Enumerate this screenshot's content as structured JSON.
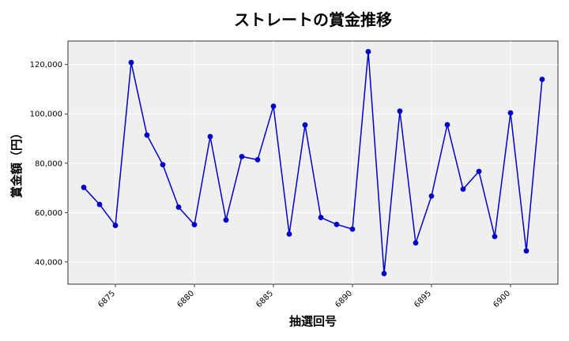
{
  "chart_data": {
    "type": "line",
    "title": "ストレートの賞金推移",
    "xlabel": "抽選回号",
    "ylabel": "賞金額（円）",
    "x": [
      6873,
      6874,
      6875,
      6876,
      6877,
      6878,
      6879,
      6880,
      6881,
      6882,
      6883,
      6884,
      6885,
      6886,
      6887,
      6888,
      6889,
      6890,
      6891,
      6892,
      6893,
      6894,
      6895,
      6896,
      6897,
      6898,
      6899,
      6900,
      6901,
      6902
    ],
    "series": [
      {
        "values": [
          70200,
          63300,
          54800,
          120800,
          91400,
          79400,
          62200,
          55100,
          90800,
          57000,
          82700,
          81400,
          103100,
          51300,
          95500,
          58000,
          55200,
          53300,
          125200,
          35300,
          101100,
          47700,
          66700,
          95600,
          69500,
          76700,
          50300,
          100400,
          44500,
          114000
        ],
        "color": "#0000cc"
      }
    ],
    "xlim": [
      6872,
      6903
    ],
    "ylim": [
      31000,
      129500
    ],
    "xticks": [
      6875,
      6880,
      6885,
      6890,
      6895,
      6900
    ],
    "xtick_labels": [
      "6875",
      "6880",
      "6885",
      "6890",
      "6895",
      "6900"
    ],
    "yticks": [
      40000,
      60000,
      80000,
      100000,
      120000
    ],
    "ytick_labels": [
      "40,000",
      "60,000",
      "80,000",
      "100,000",
      "120,000"
    ],
    "grid": true,
    "legend": "none",
    "background_color": "#efefef",
    "grid_color": "#ffffff"
  }
}
